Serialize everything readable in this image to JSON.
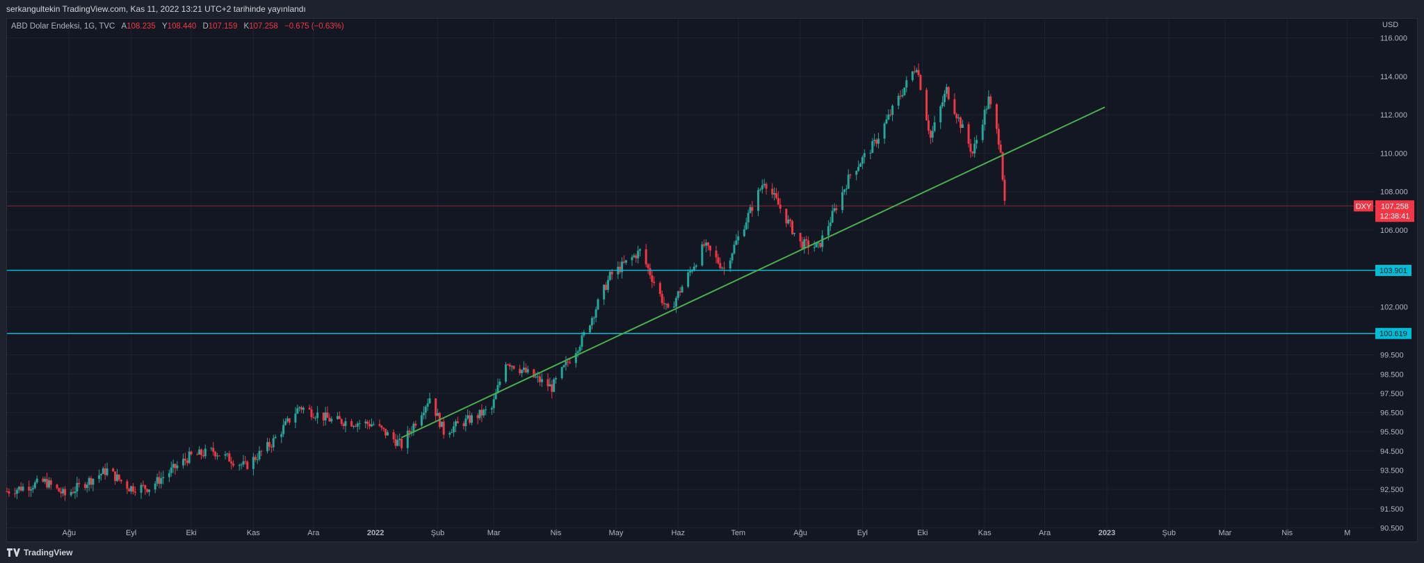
{
  "header": {
    "published": "serkangultekin TradingView.com, Kas 11, 2022 13:21 UTC+2 tarihinde yayınlandı"
  },
  "legend": {
    "symbol": "ABD Dolar Endeksi, 1G, TVC",
    "open_label": "A",
    "open_value": "108.235",
    "high_label": "Y",
    "high_value": "108.440",
    "low_label": "D",
    "low_value": "107.159",
    "close_label": "K",
    "close_value": "107.258",
    "change": "−0.675 (−0.63%)"
  },
  "currency": "USD",
  "footer": {
    "brand": "TradingView"
  },
  "colors": {
    "background": "#131722",
    "up": "#26a69a",
    "down": "#f23645",
    "hline": "#00bcd4",
    "trendline": "#4caf50",
    "text": "#b2b5be"
  },
  "chart_data": {
    "type": "candlestick",
    "title": "ABD Dolar Endeksi, 1G, TVC",
    "y_axis_ticks": [
      "116.000",
      "114.000",
      "112.000",
      "110.000",
      "108.000",
      "106.000",
      "102.000",
      "99.500",
      "98.500",
      "97.500",
      "96.500",
      "95.500",
      "94.500",
      "93.500",
      "92.500",
      "91.500",
      "90.500"
    ],
    "x_axis_ticks": [
      {
        "label": "Ağu",
        "bold": false
      },
      {
        "label": "Eyl",
        "bold": false
      },
      {
        "label": "Eki",
        "bold": false
      },
      {
        "label": "Kas",
        "bold": false
      },
      {
        "label": "Ara",
        "bold": false
      },
      {
        "label": "2022",
        "bold": true
      },
      {
        "label": "Şub",
        "bold": false
      },
      {
        "label": "Mar",
        "bold": false
      },
      {
        "label": "Nis",
        "bold": false
      },
      {
        "label": "May",
        "bold": false
      },
      {
        "label": "Haz",
        "bold": false
      },
      {
        "label": "Tem",
        "bold": false
      },
      {
        "label": "Ağu",
        "bold": false
      },
      {
        "label": "Eyl",
        "bold": false
      },
      {
        "label": "Eki",
        "bold": false
      },
      {
        "label": "Kas",
        "bold": false
      },
      {
        "label": "Ara",
        "bold": false
      },
      {
        "label": "2023",
        "bold": true
      },
      {
        "label": "Şub",
        "bold": false
      },
      {
        "label": "Mar",
        "bold": false
      },
      {
        "label": "Nis",
        "bold": false
      },
      {
        "label": "M",
        "bold": false
      }
    ],
    "price_series_monthly_close": [
      {
        "x": "2021-07",
        "close": 92.17
      },
      {
        "x": "2021-08",
        "close": 92.63
      },
      {
        "x": "2021-09",
        "close": 94.23
      },
      {
        "x": "2021-10",
        "close": 94.12
      },
      {
        "x": "2021-11",
        "close": 96.09
      },
      {
        "x": "2021-12",
        "close": 95.67
      },
      {
        "x": "2022-01",
        "close": 96.54
      },
      {
        "x": "2022-02",
        "close": 96.71
      },
      {
        "x": "2022-03",
        "close": 98.31
      },
      {
        "x": "2022-04",
        "close": 102.96
      },
      {
        "x": "2022-05",
        "close": 101.75
      },
      {
        "x": "2022-06",
        "close": 104.69
      },
      {
        "x": "2022-07",
        "close": 105.91
      },
      {
        "x": "2022-08",
        "close": 108.7
      },
      {
        "x": "2022-09",
        "close": 112.12
      },
      {
        "x": "2022-10",
        "close": 111.53
      },
      {
        "x": "2022-11",
        "close": 107.258
      }
    ],
    "key_points": {
      "cycle_low": {
        "x": "2021-07",
        "y": 91.8
      },
      "peak": {
        "x": "2022-09",
        "y": 114.8
      },
      "last": {
        "x": "2022-11-11",
        "y": 107.258
      }
    },
    "horizontal_lines": [
      {
        "value": 103.901,
        "label": "103.901"
      },
      {
        "value": 100.619,
        "label": "100.619"
      }
    ],
    "trendline": {
      "x1": "2022-01-14",
      "y1": 95.2,
      "x2": "2022-12-31",
      "y2": 112.4
    },
    "last_price": {
      "symbol": "DXY",
      "value": "107.258",
      "countdown": "12:38:41"
    },
    "ylim": [
      89.9,
      117.0
    ],
    "grid": true
  }
}
